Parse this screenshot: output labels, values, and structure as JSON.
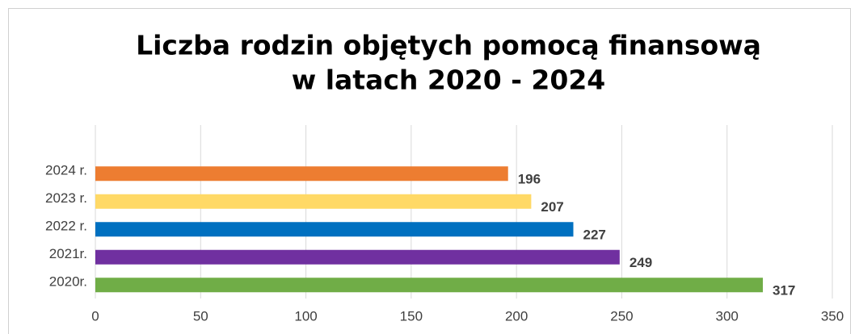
{
  "chart_data": {
    "type": "bar",
    "orientation": "horizontal",
    "title": [
      "Liczba rodzin objętych pomocą finansową",
      "w latach 2020 - 2024"
    ],
    "categories": [
      "2024 r.",
      "2023 r.",
      "2022 r.",
      "2021r.",
      "2020r."
    ],
    "values": [
      196,
      207,
      227,
      249,
      317
    ],
    "colors": [
      "#ed7d31",
      "#ffd966",
      "#0070c0",
      "#7030a0",
      "#70ad47"
    ],
    "xlim": [
      0,
      350
    ],
    "xticks": [
      0,
      50,
      100,
      150,
      200,
      250,
      300,
      350
    ],
    "grid": true
  }
}
